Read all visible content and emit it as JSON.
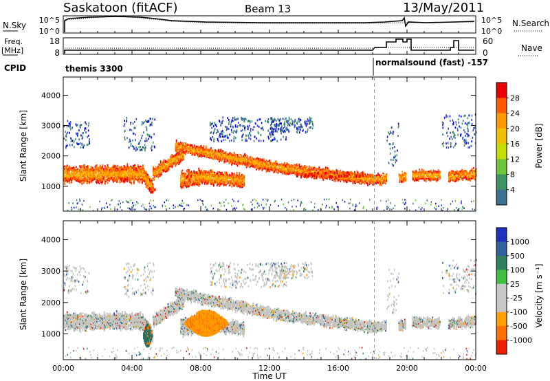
{
  "header": {
    "station": "Saskatoon (fitACF)",
    "beam": "Beam 13",
    "date": "13/May/2011"
  },
  "left_labels": {
    "nsky": "N.Sky",
    "freq_line1": "Freq.",
    "freq_line2": "[MHz]",
    "cpid": "CPID"
  },
  "right_labels": {
    "nsearch": "N.Search",
    "nave": "Nave"
  },
  "cpid_segments": [
    {
      "label": "themis 3300",
      "start": 0
    },
    {
      "label": "normalsound (fast) -157",
      "start": 18.1
    }
  ],
  "noise_axis": {
    "left_ticks": [
      "10^5",
      "10^0"
    ],
    "right_ticks": [
      "10^5",
      "10^0"
    ]
  },
  "freq_axis": {
    "left_ticks": [
      "18",
      "8"
    ],
    "right_ticks": [
      "60",
      "0"
    ]
  },
  "range_axis": {
    "label": "Slant Range [km]",
    "ticks": [
      1000,
      2000,
      3000,
      4000
    ],
    "ylim": [
      180,
      4600
    ]
  },
  "time_axis": {
    "label": "Time UT",
    "ticks": [
      "00:00",
      "04:00",
      "08:00",
      "12:00",
      "16:00",
      "20:00",
      "00:00"
    ],
    "xlim": [
      0,
      24
    ]
  },
  "power_scale": {
    "label": "Power [dB]",
    "levels": [
      "28",
      "24",
      "20",
      "16",
      "12",
      "8",
      "4"
    ],
    "colors": [
      "#ee0000",
      "#ff5a00",
      "#ff9900",
      "#f2c000",
      "#c6de00",
      "#6ec63a",
      "#3c9460",
      "#3c7090",
      "#3040c0",
      "#0000ee"
    ]
  },
  "velocity_scale": {
    "label": "Velocity [m s⁻¹]",
    "levels": [
      "1000",
      "500",
      "100",
      "25",
      "-25",
      "-100",
      "-500",
      "-1000"
    ],
    "colors": [
      "#2030c0",
      "#3060a0",
      "#2c8060",
      "#40c040",
      "#c8c8c8",
      "#c8c8c8",
      "#ffa000",
      "#ff7000",
      "#ee2000"
    ]
  },
  "chart_data": {
    "type": "heatmap",
    "panels": [
      "power",
      "velocity"
    ],
    "echo_bands": [
      {
        "from": 0.0,
        "to": 4.6,
        "center_start": 1380,
        "center_end": 1400,
        "width": 500
      },
      {
        "from": 4.6,
        "to": 5.2,
        "center_start": 1400,
        "center_end": 900,
        "width": 450
      },
      {
        "from": 5.2,
        "to": 7.0,
        "center_start": 1400,
        "center_end": 2050,
        "width": 380
      },
      {
        "from": 6.8,
        "to": 8.0,
        "center_start": 1200,
        "center_end": 1300,
        "width": 500
      },
      {
        "from": 8.0,
        "to": 10.5,
        "center_start": 1300,
        "center_end": 1150,
        "width": 400
      },
      {
        "from": 6.5,
        "to": 12.5,
        "center_start": 2300,
        "center_end": 1600,
        "width": 320
      },
      {
        "from": 12.5,
        "to": 18.0,
        "center_start": 1600,
        "center_end": 1200,
        "width": 320
      },
      {
        "from": 18.0,
        "to": 18.8,
        "center_start": 1200,
        "center_end": 1250,
        "width": 300
      },
      {
        "from": 19.5,
        "to": 19.9,
        "center_start": 1250,
        "center_end": 1300,
        "width": 300
      },
      {
        "from": 20.3,
        "to": 21.9,
        "center_start": 1350,
        "center_end": 1350,
        "width": 300
      },
      {
        "from": 22.4,
        "to": 24.0,
        "center_start": 1300,
        "center_end": 1400,
        "width": 300
      }
    ],
    "sparse_regions": [
      {
        "from": 0.0,
        "to": 1.5,
        "rmin": 2300,
        "rmax": 3200
      },
      {
        "from": 3.5,
        "to": 5.3,
        "rmin": 2200,
        "rmax": 3300
      },
      {
        "from": 8.5,
        "to": 13.0,
        "rmin": 2500,
        "rmax": 3300
      },
      {
        "from": 12.0,
        "to": 14.5,
        "rmin": 2800,
        "rmax": 3300
      },
      {
        "from": 18.8,
        "to": 19.5,
        "rmin": 1700,
        "rmax": 3100
      },
      {
        "from": 22.0,
        "to": 24.0,
        "rmin": 2300,
        "rmax": 3400
      }
    ],
    "strong_patches": [
      {
        "from": 5.0,
        "to": 5.3,
        "range": 850
      },
      {
        "from": 7.1,
        "to": 7.4,
        "range": 1250
      },
      {
        "from": 13.5,
        "to": 17.5,
        "range": 1350
      }
    ],
    "velocity_patches": [
      {
        "from": 7.0,
        "to": 10.3,
        "rmin": 950,
        "rmax": 1750,
        "velocity": -100
      },
      {
        "from": 4.6,
        "to": 5.3,
        "rmin": 600,
        "rmax": 1300,
        "velocity": 300
      }
    ]
  }
}
